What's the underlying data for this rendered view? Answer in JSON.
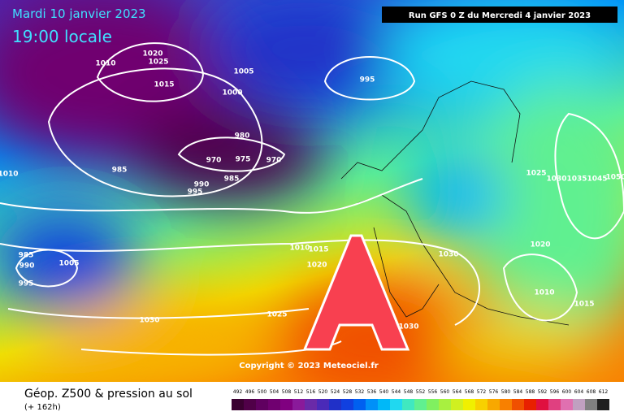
{
  "header": {
    "date": "Mardi 10 janvier 2023",
    "time": "19:00 locale",
    "run": "Run GFS 0 Z du Mercredi 4 janvier 2023",
    "copyright": "Copyright © 2023 Meteociel.fr",
    "anticyclone": "A"
  },
  "footer": {
    "title": "Géop. Z500 & pression au sol",
    "lead": "(+ 162h)"
  },
  "isobar_labels": [
    1020,
    1025,
    1010,
    1015,
    1005,
    1000,
    995,
    980,
    970,
    975,
    970,
    985,
    985,
    990,
    995,
    1010,
    1025,
    1030,
    1035,
    1045,
    1050,
    1010,
    1015,
    1020,
    985,
    990,
    1005,
    995,
    1030,
    1020,
    1010,
    1015,
    1025,
    1030,
    1030
  ],
  "scale": {
    "values": [
      492,
      496,
      500,
      504,
      508,
      512,
      516,
      520,
      524,
      528,
      532,
      536,
      540,
      544,
      548,
      552,
      556,
      560,
      564,
      568,
      572,
      576,
      580,
      584,
      588,
      592,
      596,
      600,
      604,
      608,
      612
    ],
    "colors": [
      "#3a0030",
      "#500048",
      "#600060",
      "#700070",
      "#800080",
      "#8a1a9a",
      "#6a2aa8",
      "#4a2ab8",
      "#2030c8",
      "#1040e0",
      "#0060f0",
      "#0090f8",
      "#00b8f8",
      "#20d8f0",
      "#40e8c0",
      "#60f090",
      "#80f060",
      "#a8f040",
      "#d0f020",
      "#f0f000",
      "#f8d000",
      "#f8a800",
      "#f88000",
      "#f05000",
      "#e82000",
      "#e01040",
      "#e04080",
      "#e070b0",
      "#c0a0c0",
      "#808080",
      "#202020"
    ]
  }
}
